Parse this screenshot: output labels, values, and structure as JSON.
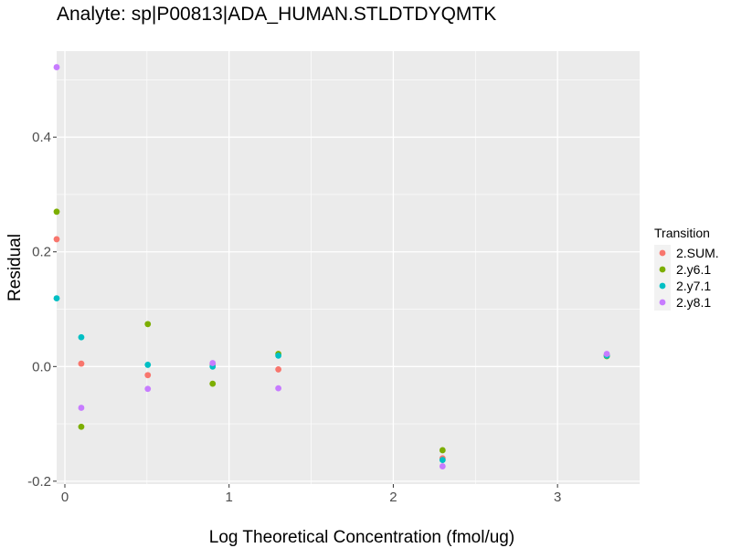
{
  "chart_data": {
    "type": "scatter",
    "title": "Analyte: sp|P00813|ADA_HUMAN.STLDTDYQMTK",
    "xlabel": "Log Theoretical Concentration (fmol/ug)",
    "ylabel": "Residual",
    "xlim": [
      -0.05,
      3.5
    ],
    "ylim": [
      -0.205,
      0.55
    ],
    "x_ticks": [
      0,
      1,
      2,
      3
    ],
    "y_ticks": [
      -0.2,
      0.0,
      0.2,
      0.4
    ],
    "x_tick_labels": [
      "0",
      "1",
      "2",
      "3"
    ],
    "y_tick_labels": [
      "-0.2",
      "0.0",
      "0.2",
      "0.4"
    ],
    "grid": true,
    "legend": {
      "title": "Transition",
      "position": "right"
    },
    "series": [
      {
        "name": "2.SUM.",
        "color": "#F8766D",
        "points": [
          [
            -0.05,
            0.222
          ],
          [
            0.1,
            0.005
          ],
          [
            0.505,
            -0.015
          ],
          [
            0.9,
            0.004
          ],
          [
            1.3,
            -0.005
          ],
          [
            2.3,
            -0.16
          ],
          [
            3.3,
            0.02
          ]
        ]
      },
      {
        "name": "2.y6.1",
        "color": "#7CAE00",
        "points": [
          [
            -0.05,
            0.27
          ],
          [
            0.1,
            -0.105
          ],
          [
            0.505,
            0.074
          ],
          [
            0.9,
            -0.03
          ],
          [
            1.3,
            0.022
          ],
          [
            2.3,
            -0.146
          ],
          [
            3.3,
            0.018
          ]
        ]
      },
      {
        "name": "2.y7.1",
        "color": "#00BFC4",
        "points": [
          [
            -0.05,
            0.119
          ],
          [
            0.1,
            0.051
          ],
          [
            0.505,
            0.003
          ],
          [
            0.9,
            0.0
          ],
          [
            1.3,
            0.019
          ],
          [
            2.3,
            -0.163
          ],
          [
            3.3,
            0.019
          ]
        ]
      },
      {
        "name": "2.y8.1",
        "color": "#C77CFF",
        "points": [
          [
            -0.05,
            0.522
          ],
          [
            0.1,
            -0.072
          ],
          [
            0.505,
            -0.039
          ],
          [
            0.9,
            0.006
          ],
          [
            1.3,
            -0.038
          ],
          [
            2.3,
            -0.174
          ],
          [
            3.3,
            0.022
          ]
        ]
      }
    ]
  }
}
